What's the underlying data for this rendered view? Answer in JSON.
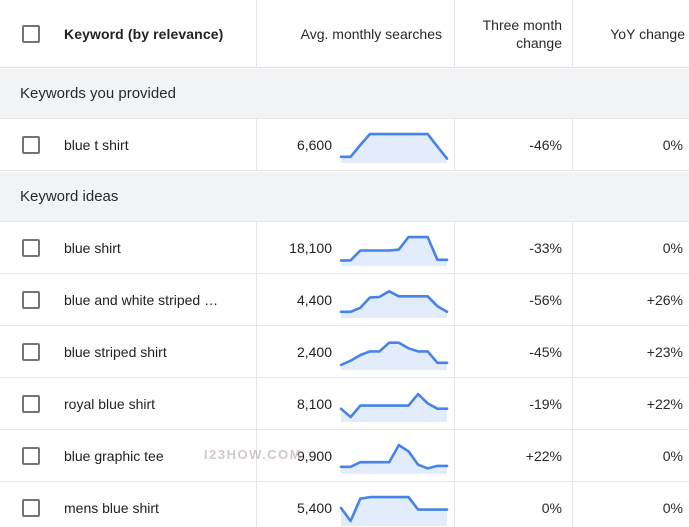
{
  "table": {
    "headers": {
      "keyword": "Keyword (by relevance)",
      "avg_monthly_searches": "Avg. monthly searches",
      "three_month_change": "Three month change",
      "yoy_change": "YoY change"
    },
    "sections": [
      {
        "label": "Keywords you provided",
        "rows": [
          {
            "keyword": "blue t shirt",
            "searches": "6,600",
            "three_month": "-46%",
            "yoy": "0%",
            "trend": [
              12,
              12,
              50,
              85,
              85,
              85,
              85,
              85,
              85,
              85,
              45,
              6
            ]
          }
        ]
      },
      {
        "label": "Keyword ideas",
        "rows": [
          {
            "keyword": "blue shirt",
            "searches": "18,100",
            "three_month": "-33%",
            "yoy": "0%",
            "trend": [
              10,
              10,
              42,
              42,
              42,
              42,
              45,
              85,
              85,
              85,
              12,
              12
            ]
          },
          {
            "keyword": "blue and white striped sh…",
            "searches": "4,400",
            "three_month": "-56%",
            "yoy": "+26%",
            "trend": [
              12,
              12,
              25,
              58,
              60,
              78,
              62,
              62,
              62,
              62,
              30,
              12
            ]
          },
          {
            "keyword": "blue striped shirt",
            "searches": "2,400",
            "three_month": "-45%",
            "yoy": "+23%",
            "trend": [
              8,
              22,
              40,
              52,
              52,
              80,
              80,
              62,
              52,
              52,
              15,
              15
            ]
          },
          {
            "keyword": "royal blue shirt",
            "searches": "8,100",
            "three_month": "-19%",
            "yoy": "+22%",
            "trend": [
              35,
              8,
              45,
              45,
              45,
              45,
              45,
              45,
              82,
              52,
              35,
              35
            ]
          },
          {
            "keyword": "blue graphic tee",
            "searches": "9,900",
            "three_month": "+22%",
            "yoy": "0%",
            "trend": [
              15,
              15,
              30,
              30,
              30,
              30,
              85,
              65,
              22,
              10,
              18,
              18
            ]
          },
          {
            "keyword": "mens blue shirt",
            "searches": "5,400",
            "three_month": "0%",
            "yoy": "0%",
            "trend": [
              50,
              8,
              80,
              85,
              85,
              85,
              85,
              85,
              45,
              45,
              45,
              45
            ]
          }
        ]
      }
    ]
  },
  "chart_data": {
    "type": "line",
    "note": "sparkline trends per keyword, 12 monthly points scaled 0-100",
    "series_key": "table.sections[].rows[].trend"
  },
  "watermark": "I23HOW.COM",
  "colors": {
    "spark_stroke": "#4683ea",
    "spark_fill": "#e3ecfb",
    "section_bg": "#f1f3f4",
    "border": "#e3e5e8",
    "header_border": "#dadce0",
    "text": "#202124",
    "checkbox_border": "#70757a"
  }
}
